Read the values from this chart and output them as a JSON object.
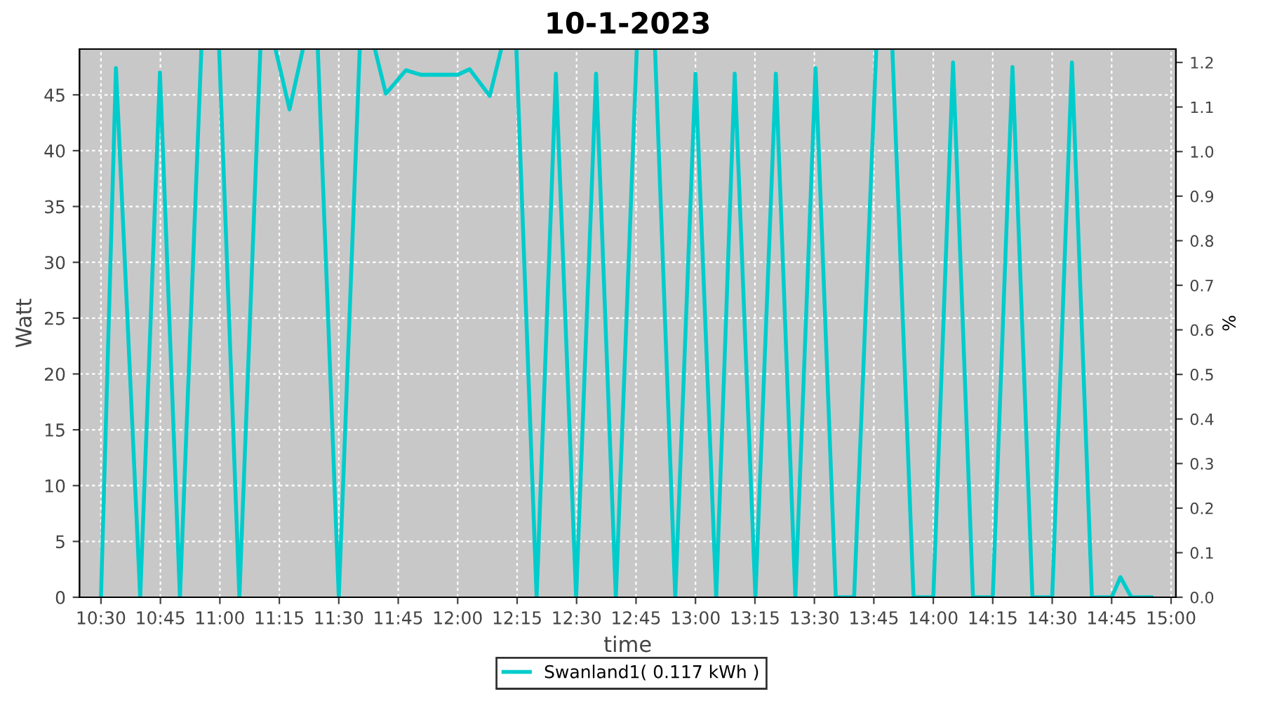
{
  "chart_data": {
    "type": "line",
    "title": "10-1-2023",
    "xlabel": "time",
    "ylabel": "Watt",
    "y2label": "%",
    "series": [
      {
        "name": "Swanland1( 0.117 kWh )",
        "color": "#00cccc",
        "x": [
          10.5,
          10.563,
          10.665,
          10.748,
          10.832,
          10.922,
          10.958,
          10.997,
          11.082,
          11.17,
          11.2,
          11.235,
          11.293,
          11.348,
          11.383,
          11.412,
          11.5,
          11.588,
          11.617,
          11.653,
          11.698,
          11.782,
          11.845,
          12.0,
          12.05,
          12.135,
          12.182,
          12.217,
          12.247,
          12.332,
          12.413,
          12.498,
          12.582,
          12.665,
          12.753,
          12.792,
          12.83,
          12.915,
          13.0,
          13.087,
          13.165,
          13.252,
          13.338,
          13.42,
          13.505,
          13.59,
          13.667,
          13.76,
          13.792,
          13.828,
          13.917,
          14.0,
          14.083,
          14.167,
          14.25,
          14.333,
          14.417,
          14.5,
          14.583,
          14.667,
          14.75,
          14.787,
          14.833,
          14.917
        ],
        "values": [
          0,
          47.4,
          0,
          47,
          0,
          49,
          null,
          49,
          0,
          49,
          null,
          49,
          43.7,
          49,
          null,
          49,
          0,
          49,
          null,
          49,
          45.1,
          47.2,
          46.8,
          46.8,
          47.3,
          44.9,
          49,
          null,
          49,
          0,
          46.9,
          0,
          46.9,
          0,
          49,
          null,
          49,
          0,
          46.9,
          0,
          46.9,
          0,
          46.9,
          0,
          47.4,
          0,
          0,
          49,
          null,
          49,
          0,
          0,
          47.9,
          0,
          0,
          47.5,
          0,
          0,
          47.9,
          0,
          0,
          1.8,
          0,
          0
        ]
      }
    ],
    "xlim": [
      10.41,
      15.02
    ],
    "xticks": [
      {
        "value": 10.5,
        "label": "10:30"
      },
      {
        "value": 10.75,
        "label": "10:45"
      },
      {
        "value": 11,
        "label": "11:00"
      },
      {
        "value": 11.25,
        "label": "11:15"
      },
      {
        "value": 11.5,
        "label": "11:30"
      },
      {
        "value": 11.75,
        "label": "11:45"
      },
      {
        "value": 12,
        "label": "12:00"
      },
      {
        "value": 12.25,
        "label": "12:15"
      },
      {
        "value": 12.5,
        "label": "12:30"
      },
      {
        "value": 12.75,
        "label": "12:45"
      },
      {
        "value": 13,
        "label": "13:00"
      },
      {
        "value": 13.25,
        "label": "13:15"
      },
      {
        "value": 13.5,
        "label": "13:30"
      },
      {
        "value": 13.75,
        "label": "13:45"
      },
      {
        "value": 14,
        "label": "14:00"
      },
      {
        "value": 14.25,
        "label": "14:15"
      },
      {
        "value": 14.5,
        "label": "14:30"
      },
      {
        "value": 14.75,
        "label": "14:45"
      },
      {
        "value": 15,
        "label": "15:00"
      }
    ],
    "ylim": [
      0,
      49.1
    ],
    "yticks": [
      0,
      5,
      10,
      15,
      20,
      25,
      30,
      35,
      40,
      45
    ],
    "y2lim": [
      0,
      1.23
    ],
    "y2ticks": [
      {
        "value": 0,
        "label": "0.0"
      },
      {
        "value": 0.1,
        "label": "0.1"
      },
      {
        "value": 0.2,
        "label": "0.2"
      },
      {
        "value": 0.3,
        "label": "0.3"
      },
      {
        "value": 0.4,
        "label": "0.4"
      },
      {
        "value": 0.5,
        "label": "0.5"
      },
      {
        "value": 0.6,
        "label": "0.6"
      },
      {
        "value": 0.7,
        "label": "0.7"
      },
      {
        "value": 0.8,
        "label": "0.8"
      },
      {
        "value": 0.9,
        "label": "0.9"
      },
      {
        "value": 1.0,
        "label": "1.0"
      },
      {
        "value": 1.1,
        "label": "1.1"
      },
      {
        "value": 1.2,
        "label": "1.2"
      }
    ],
    "grid": true,
    "legend": "bottom",
    "line_style": "solid",
    "marker": "none"
  }
}
